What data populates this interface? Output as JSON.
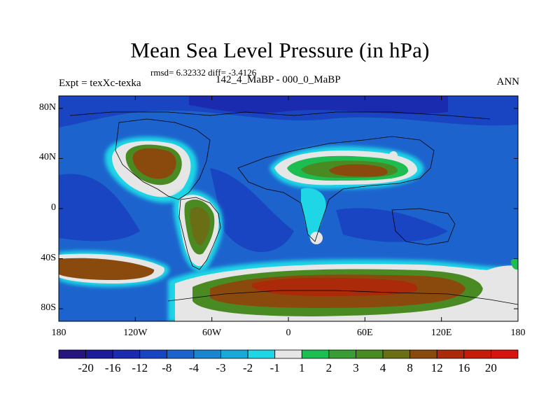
{
  "title": "Mean Sea Level Pressure (in hPa)",
  "stats": "rmsd= 6.32332 diff= -3.4126",
  "left_label": "Expt = texXc-texka",
  "center_label": "142_4_MaBP - 000_0_MaBP",
  "right_label": "ANN",
  "lat_ticks": [
    "80N",
    "40N",
    "0",
    "40S",
    "80S"
  ],
  "lat_values": [
    80,
    40,
    0,
    -40,
    -80
  ],
  "lon_ticks": [
    "180",
    "120W",
    "60W",
    "0",
    "60E",
    "120E",
    "180"
  ],
  "lon_values": [
    -180,
    -120,
    -60,
    0,
    60,
    120,
    180
  ],
  "colorbar": {
    "labels": [
      "-20",
      "-16",
      "-12",
      "-8",
      "-4",
      "-3",
      "-2",
      "-1",
      "1",
      "2",
      "3",
      "4",
      "8",
      "12",
      "16",
      "20"
    ],
    "colors": [
      "#25157f",
      "#1c1b99",
      "#1a2bb0",
      "#1a45c2",
      "#1d63cd",
      "#1a86cf",
      "#19a9d9",
      "#1fd6e6",
      "#e6e6e6",
      "#1ebd51",
      "#3a9c35",
      "#4a8a22",
      "#6a6e14",
      "#8a4a0e",
      "#aa2a0a",
      "#c61c0a",
      "#d8140f"
    ]
  },
  "field_colors": {
    "background": "#1d63cd",
    "deep": "#1a45c2",
    "deeper": "#1a2bb0",
    "cyan": "#19a9d9",
    "lightcyan": "#1fd6e6",
    "neutral": "#e6e6e6",
    "green": "#1ebd51",
    "olive": "#4a8a22",
    "brown": "#8a4a0e",
    "red": "#aa2a0a"
  }
}
